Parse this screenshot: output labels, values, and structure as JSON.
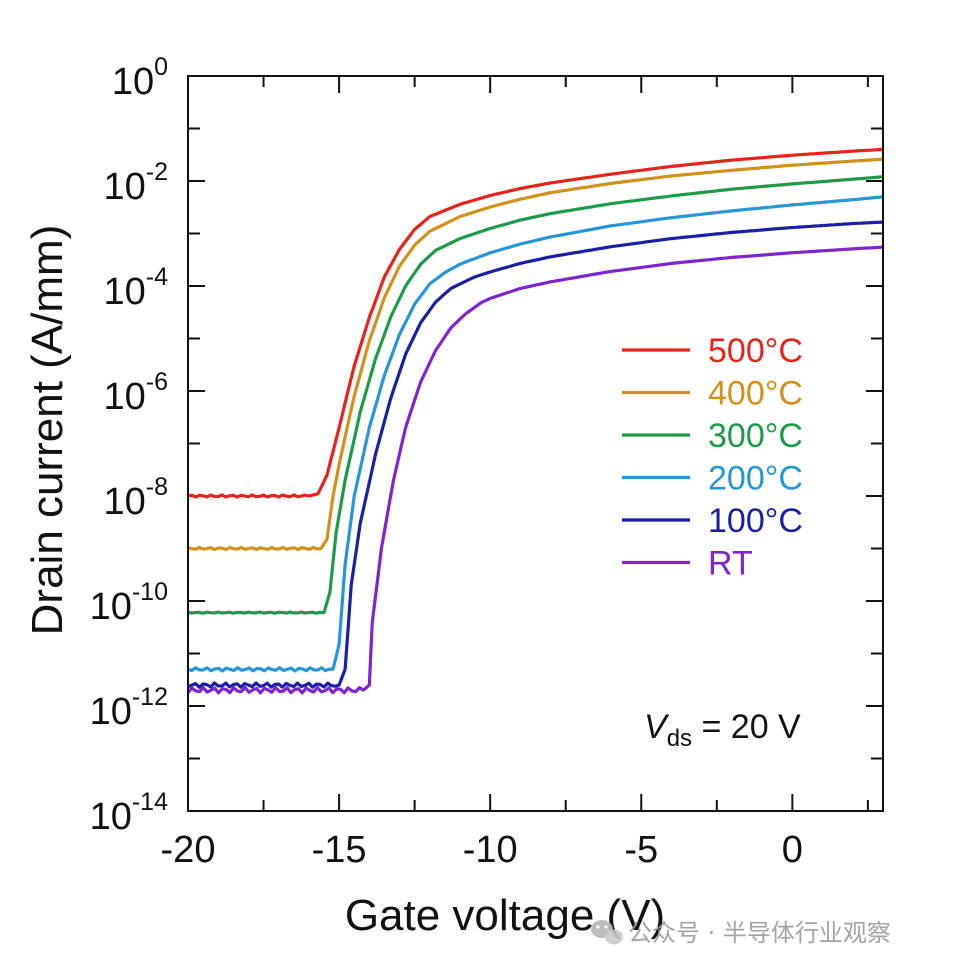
{
  "chart_data": {
    "type": "line",
    "xlabel": "Gate voltage (V)",
    "ylabel": "Drain current (A/mm)",
    "xlim": [
      -20,
      3
    ],
    "ylim_log10": [
      -14,
      0
    ],
    "y_scale": "log",
    "grid": false,
    "legend_position": "right-middle",
    "x_ticks": [
      -20,
      -15,
      -10,
      -5,
      0
    ],
    "x_tick_labels": [
      "-20",
      "-15",
      "-10",
      "-5",
      "0"
    ],
    "y_ticks_exponent": [
      0,
      -2,
      -4,
      -6,
      -8,
      -10,
      -12,
      -14
    ],
    "y_tick_labels": [
      {
        "base": "10",
        "exp": "0"
      },
      {
        "base": "10",
        "exp": "-2"
      },
      {
        "base": "10",
        "exp": "-4"
      },
      {
        "base": "10",
        "exp": "-6"
      },
      {
        "base": "10",
        "exp": "-8"
      },
      {
        "base": "10",
        "exp": "-10"
      },
      {
        "base": "10",
        "exp": "-12"
      },
      {
        "base": "10",
        "exp": "-14"
      }
    ],
    "annotation": {
      "italic": "V",
      "subscript": "ds",
      "rest": " = 20 V"
    },
    "series": [
      {
        "name": "500°C",
        "color": "#e8221c",
        "x": [
          -20,
          -16,
          -15.7,
          -15.4,
          -15.0,
          -14.5,
          -14.0,
          -13.5,
          -13.0,
          -12.5,
          -12.0,
          -11.0,
          -10.0,
          -9.0,
          -8.0,
          -6.0,
          -4.0,
          -2.0,
          0,
          2,
          3
        ],
        "y": [
          1e-08,
          1e-08,
          1.1e-08,
          2.5e-08,
          2e-07,
          3e-06,
          2.5e-05,
          0.00015,
          0.0005,
          0.0012,
          0.0021,
          0.0036,
          0.0053,
          0.0072,
          0.0092,
          0.0135,
          0.019,
          0.025,
          0.031,
          0.037,
          0.04
        ]
      },
      {
        "name": "400°C",
        "color": "#d4901c",
        "x": [
          -20,
          -15.6,
          -15.4,
          -15.2,
          -15.0,
          -14.5,
          -14.0,
          -13.5,
          -13.0,
          -12.5,
          -12.0,
          -11.0,
          -10.0,
          -9.0,
          -8.0,
          -6.0,
          -4.0,
          -2.0,
          0,
          2,
          3
        ],
        "y": [
          1e-09,
          1e-09,
          1.5e-09,
          1e-08,
          4e-08,
          8e-07,
          9e-06,
          6e-05,
          0.00024,
          0.0006,
          0.0011,
          0.0021,
          0.0032,
          0.0045,
          0.006,
          0.009,
          0.0125,
          0.016,
          0.02,
          0.024,
          0.026
        ]
      },
      {
        "name": "300°C",
        "color": "#1f9a4a",
        "x": [
          -20,
          -15.5,
          -15.3,
          -15.1,
          -14.8,
          -14.3,
          -13.8,
          -13.3,
          -12.8,
          -12.3,
          -11.8,
          -11.0,
          -10.0,
          -9.0,
          -8.0,
          -6.0,
          -4.0,
          -2.0,
          0,
          2,
          3
        ],
        "y": [
          6e-11,
          6e-11,
          1.5e-10,
          2e-09,
          2e-08,
          4e-07,
          4e-06,
          2.5e-05,
          0.0001,
          0.00026,
          0.00048,
          0.0008,
          0.00125,
          0.0018,
          0.0024,
          0.0037,
          0.0052,
          0.007,
          0.0088,
          0.0108,
          0.012
        ]
      },
      {
        "name": "200°C",
        "color": "#2696d8",
        "x": [
          -20,
          -15.2,
          -15.0,
          -14.8,
          -14.5,
          -14.0,
          -13.5,
          -13.0,
          -12.5,
          -12.0,
          -11.5,
          -11.0,
          -10.0,
          -9.0,
          -8.0,
          -6.0,
          -4.0,
          -2.0,
          0,
          2,
          3
        ],
        "y": [
          5e-12,
          5e-12,
          1.5e-11,
          5e-10,
          1e-08,
          2e-07,
          2e-06,
          1.2e-05,
          4.5e-05,
          0.00011,
          0.00018,
          0.00026,
          0.00043,
          0.00063,
          0.00086,
          0.0014,
          0.002,
          0.0027,
          0.0035,
          0.0044,
          0.005
        ]
      },
      {
        "name": "100°C",
        "color": "#1a1fa6",
        "x": [
          -20,
          -15.0,
          -14.8,
          -14.6,
          -14.3,
          -13.8,
          -13.3,
          -12.8,
          -12.3,
          -11.8,
          -11.3,
          -10.5,
          -10.0,
          -9.0,
          -8.0,
          -6.0,
          -4.0,
          -2.0,
          0,
          2,
          3
        ],
        "y": [
          2.5e-12,
          2.5e-12,
          5e-12,
          2e-10,
          3e-09,
          6e-08,
          7e-07,
          5e-06,
          2e-05,
          5e-05,
          9e-05,
          0.00015,
          0.000185,
          0.00027,
          0.00036,
          0.00056,
          0.0008,
          0.00105,
          0.0013,
          0.00155,
          0.00165
        ]
      },
      {
        "name": "RT",
        "color": "#7e25d0",
        "x": [
          -20,
          -14.2,
          -14.0,
          -13.9,
          -13.6,
          -13.2,
          -12.8,
          -12.3,
          -11.8,
          -11.3,
          -10.8,
          -10.3,
          -10.0,
          -9.0,
          -8.0,
          -6.0,
          -4.0,
          -2.0,
          0,
          2,
          3
        ],
        "y": [
          2e-12,
          2e-12,
          2.5e-12,
          4e-11,
          1e-09,
          2e-08,
          2e-07,
          1.5e-06,
          6e-06,
          1.6e-05,
          3e-05,
          4.8e-05,
          5.8e-05,
          9e-05,
          0.00012,
          0.00019,
          0.00027,
          0.00035,
          0.00043,
          0.00051,
          0.00055
        ]
      }
    ]
  },
  "watermark": {
    "icon": "wechat-icon",
    "text": "公众号 · 半导体行业观察"
  }
}
